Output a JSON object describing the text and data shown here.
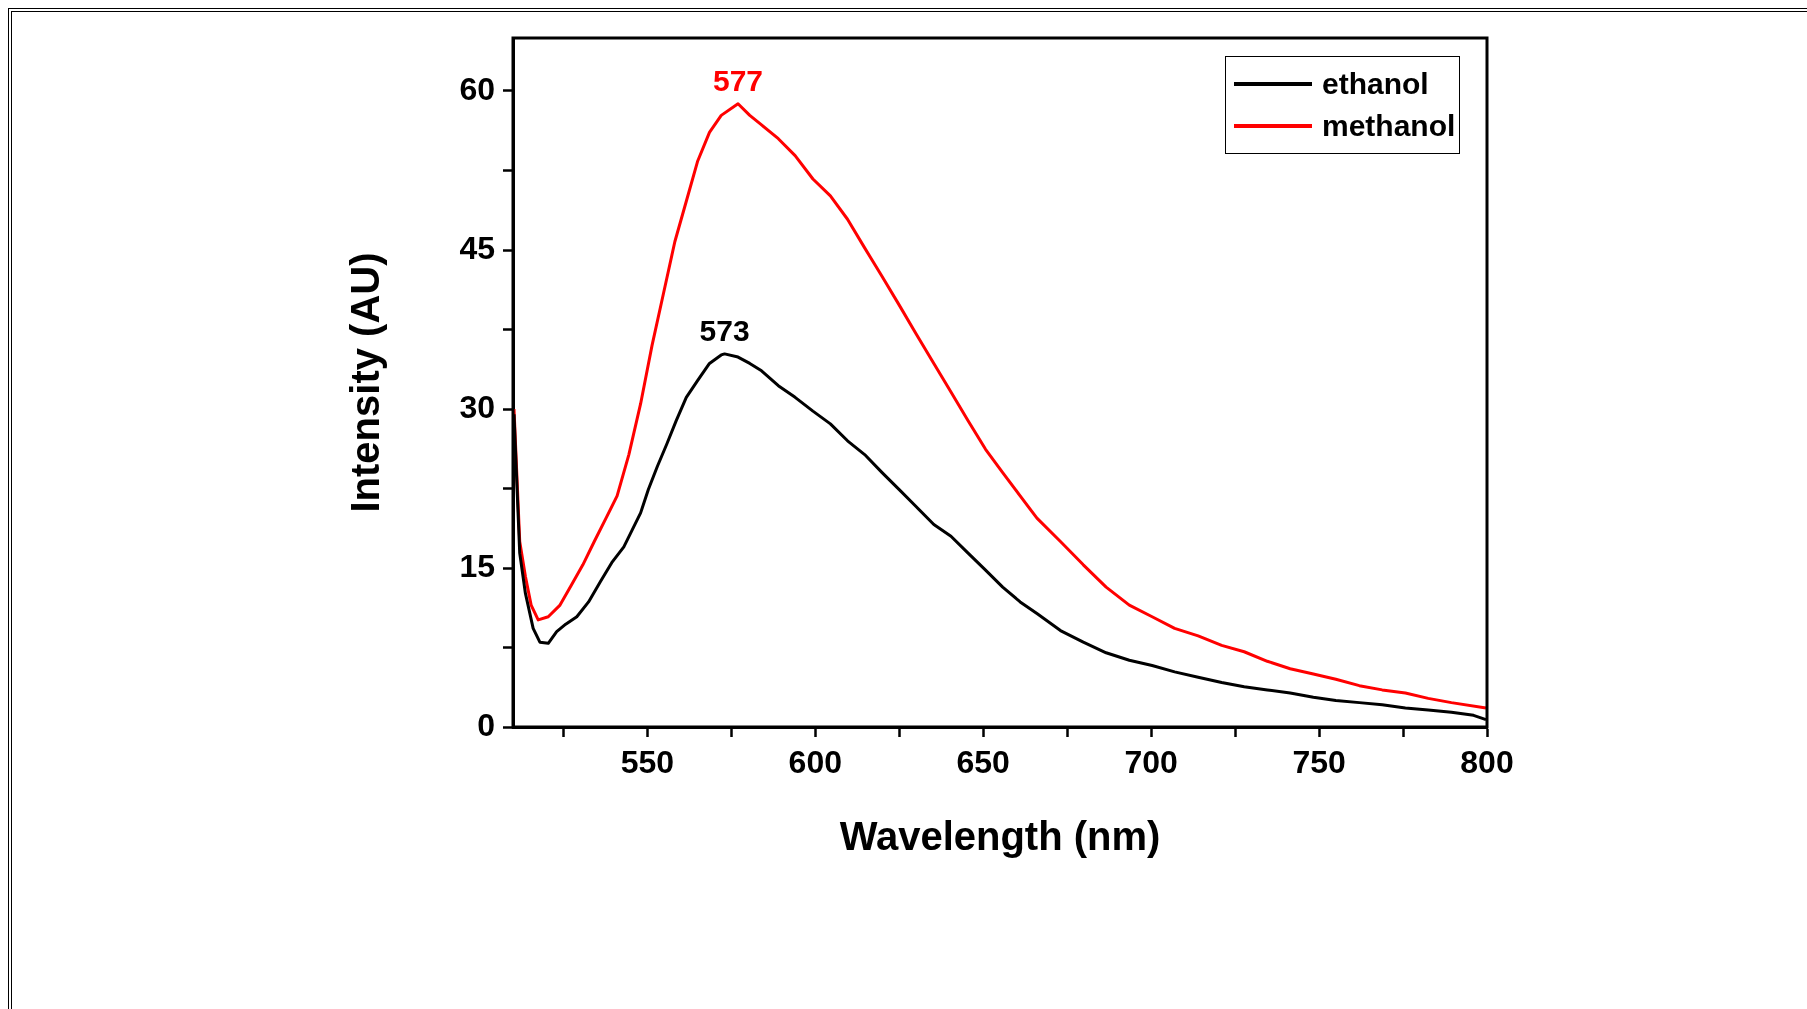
{
  "chart_data": {
    "type": "line",
    "xlabel": "Wavelength (nm)",
    "ylabel": "Intensity (AU)",
    "xlim": [
      510,
      800
    ],
    "ylim": [
      0,
      65
    ],
    "xticks": [
      {
        "value": 525,
        "label": null
      },
      550,
      {
        "value": 575,
        "label": null
      },
      600,
      {
        "value": 625,
        "label": null
      },
      650,
      {
        "value": 675,
        "label": null
      },
      700,
      {
        "value": 725,
        "label": null
      },
      750,
      {
        "value": 775,
        "label": null
      },
      800
    ],
    "yticks": [
      0,
      {
        "value": 7.5,
        "label": null
      },
      15,
      {
        "value": 22.5,
        "label": null
      },
      30,
      {
        "value": 37.5,
        "label": null
      },
      45,
      {
        "value": 52.5,
        "label": null
      },
      60
    ],
    "legend": "top right",
    "grid": false,
    "marker": "none",
    "line_style": "solid",
    "annotations": [
      {
        "text": "573",
        "x": 573,
        "y": 35.2
      },
      {
        "text": "577",
        "x": 577,
        "y": 58.8
      }
    ],
    "series": [
      {
        "name": "ethanol",
        "color": "#000000",
        "x": [
          510.3,
          512,
          513.7,
          516,
          518,
          520.5,
          523,
          525.7,
          529,
          532.5,
          536,
          539.4,
          543,
          545.5,
          548,
          550.3,
          553,
          555.8,
          558.6,
          561.6,
          565,
          568.5,
          572,
          573,
          577,
          580.5,
          584,
          589,
          594,
          599.3,
          604.5,
          609.6,
          614.7,
          619.9,
          625,
          630,
          635.3,
          640.4,
          645.5,
          650.7,
          655.8,
          661,
          666,
          673,
          679.8,
          686.6,
          693.5,
          700.3,
          707,
          714,
          721,
          727.7,
          734.6,
          741.4,
          748.3,
          755,
          762,
          768.8,
          775.7,
          782.5,
          789.4,
          796,
          799.7
        ],
        "values": [
          29.5,
          16.4,
          12.6,
          9.3,
          8.0,
          7.9,
          9.0,
          9.7,
          10.4,
          11.8,
          13.7,
          15.5,
          17,
          18.6,
          20.2,
          22.4,
          24.6,
          26.7,
          28.9,
          31.1,
          32.7,
          34.3,
          35.1,
          35.2,
          34.9,
          34.3,
          33.6,
          32.2,
          31.1,
          29.8,
          28.6,
          27,
          25.7,
          24,
          22.4,
          20.8,
          19.1,
          18,
          16.4,
          14.8,
          13.2,
          11.8,
          10.7,
          9.1,
          8.0,
          7.0,
          6.3,
          5.8,
          5.2,
          4.7,
          4.2,
          3.8,
          3.5,
          3.2,
          2.8,
          2.5,
          2.3,
          2.1,
          1.8,
          1.6,
          1.4,
          1.1,
          0.7
        ]
      },
      {
        "name": "methanol",
        "color": "#ff0000",
        "x": [
          510.3,
          512,
          513.7,
          515.4,
          517.5,
          520.5,
          524,
          527.4,
          530.8,
          534.2,
          537.7,
          541,
          544.5,
          548,
          551.4,
          554.8,
          558.2,
          561.6,
          565,
          568.5,
          572,
          577,
          580.5,
          584,
          589,
          594,
          599.3,
          604.5,
          609.6,
          614.7,
          619.9,
          625,
          630,
          635.3,
          640.4,
          645.5,
          650.7,
          655.8,
          661,
          666,
          673,
          679.8,
          686.6,
          693.5,
          700.3,
          707,
          714,
          721,
          727.7,
          734.6,
          741.4,
          748.3,
          755,
          762,
          768.8,
          775.7,
          782.5,
          789.4,
          799.7
        ],
        "values": [
          30,
          17.5,
          14.2,
          11.5,
          10.1,
          10.4,
          11.5,
          13.4,
          15.3,
          17.5,
          19.7,
          21.8,
          25.7,
          30.5,
          36,
          40.9,
          45.8,
          49.6,
          53.4,
          56.1,
          57.7,
          58.8,
          57.7,
          56.8,
          55.5,
          53.9,
          51.7,
          50.1,
          47.9,
          45.2,
          42.5,
          39.8,
          37.1,
          34.3,
          31.6,
          28.9,
          26.2,
          24,
          21.8,
          19.7,
          17.5,
          15.3,
          13.2,
          11.5,
          10.4,
          9.3,
          8.6,
          7.7,
          7.1,
          6.2,
          5.5,
          5.0,
          4.5,
          3.9,
          3.5,
          3.2,
          2.7,
          2.3,
          1.8
        ]
      }
    ]
  }
}
